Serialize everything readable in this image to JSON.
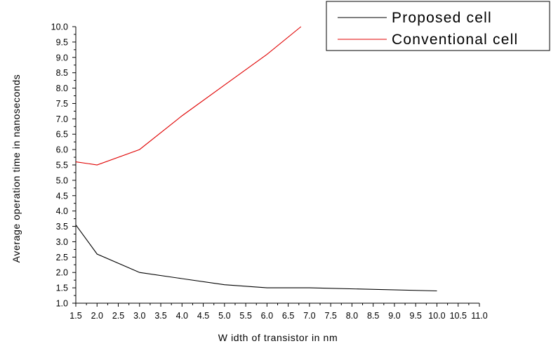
{
  "chart_data": {
    "type": "line",
    "xlabel": "W idth of transistor in nm",
    "ylabel": "Average operation time in nanoseconds",
    "xlim": [
      1.5,
      11.0
    ],
    "ylim": [
      1.0,
      10.0
    ],
    "x_ticks": [
      "1.5",
      "2.0",
      "2.5",
      "3.0",
      "3.5",
      "4.0",
      "4.5",
      "5.0",
      "5.5",
      "6.0",
      "6.5",
      "7.0",
      "7.5",
      "8.0",
      "8.5",
      "9.0",
      "9.5",
      "10.0",
      "10.5",
      "11.0"
    ],
    "y_ticks": [
      "1.0",
      "1.5",
      "2.0",
      "2.5",
      "3.0",
      "3.5",
      "4.0",
      "4.5",
      "5.0",
      "5.5",
      "6.0",
      "6.5",
      "7.0",
      "7.5",
      "8.0",
      "8.5",
      "9.0",
      "9.5",
      "10.0"
    ],
    "legend_position": "top-right",
    "series": [
      {
        "name": "Proposed cell",
        "color": "#000000",
        "points": [
          [
            1.5,
            3.55
          ],
          [
            2.0,
            2.6
          ],
          [
            3.0,
            2.0
          ],
          [
            4.0,
            1.8
          ],
          [
            5.0,
            1.6
          ],
          [
            6.0,
            1.5
          ],
          [
            7.0,
            1.5
          ],
          [
            10.0,
            1.4
          ]
        ]
      },
      {
        "name": "Conventional cell",
        "color": "#e00000",
        "points": [
          [
            1.5,
            5.6
          ],
          [
            2.0,
            5.5
          ],
          [
            3.0,
            6.0
          ],
          [
            4.0,
            7.1
          ],
          [
            5.0,
            8.1
          ],
          [
            6.0,
            9.1
          ],
          [
            6.8,
            10.0
          ]
        ]
      }
    ]
  }
}
